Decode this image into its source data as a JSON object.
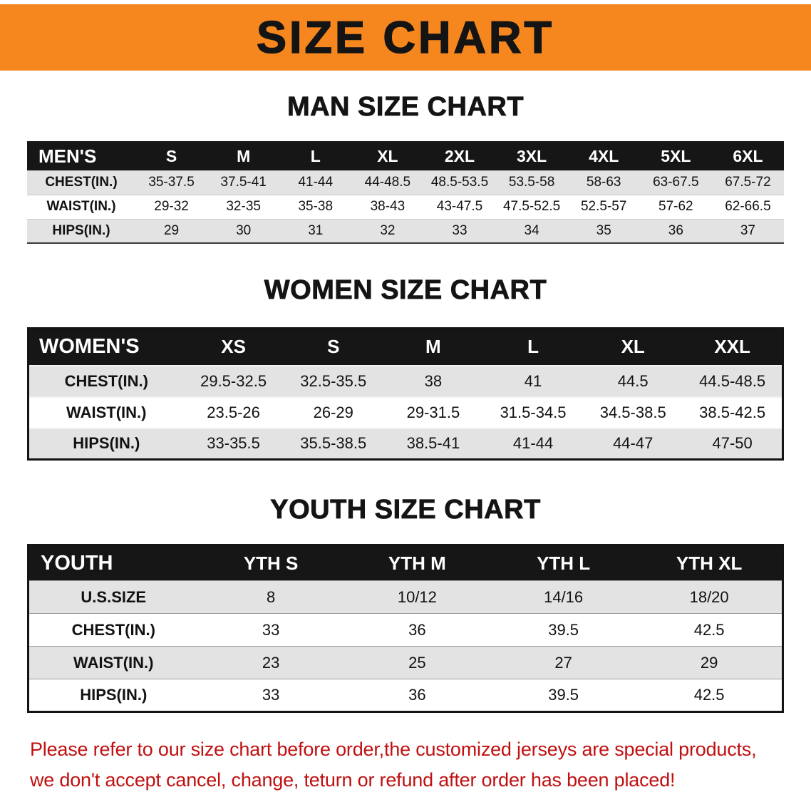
{
  "banner": {
    "title": "SIZE CHART"
  },
  "colors": {
    "banner_bg": "#F6871F",
    "table_header_bg": "#161616",
    "row_shade": "#E3E3E3",
    "note_red": "#C01010"
  },
  "chart_data": [
    {
      "type": "table",
      "title": "MAN SIZE CHART",
      "corner_label": "MEN'S",
      "columns": [
        "S",
        "M",
        "L",
        "XL",
        "2XL",
        "3XL",
        "4XL",
        "5XL",
        "6XL"
      ],
      "rows": [
        {
          "label": "CHEST(IN.)",
          "values": [
            "35-37.5",
            "37.5-41",
            "41-44",
            "44-48.5",
            "48.5-53.5",
            "53.5-58",
            "58-63",
            "63-67.5",
            "67.5-72"
          ]
        },
        {
          "label": "WAIST(IN.)",
          "values": [
            "29-32",
            "32-35",
            "35-38",
            "38-43",
            "43-47.5",
            "47.5-52.5",
            "52.5-57",
            "57-62",
            "62-66.5"
          ]
        },
        {
          "label": "HIPS(IN.)",
          "values": [
            "29",
            "30",
            "31",
            "32",
            "33",
            "34",
            "35",
            "36",
            "37"
          ]
        }
      ]
    },
    {
      "type": "table",
      "title": "WOMEN SIZE CHART",
      "corner_label": "WOMEN'S",
      "columns": [
        "XS",
        "S",
        "M",
        "L",
        "XL",
        "XXL"
      ],
      "rows": [
        {
          "label": "CHEST(IN.)",
          "values": [
            "29.5-32.5",
            "32.5-35.5",
            "38",
            "41",
            "44.5",
            "44.5-48.5"
          ]
        },
        {
          "label": "WAIST(IN.)",
          "values": [
            "23.5-26",
            "26-29",
            "29-31.5",
            "31.5-34.5",
            "34.5-38.5",
            "38.5-42.5"
          ]
        },
        {
          "label": "HIPS(IN.)",
          "values": [
            "33-35.5",
            "35.5-38.5",
            "38.5-41",
            "41-44",
            "44-47",
            "47-50"
          ]
        }
      ]
    },
    {
      "type": "table",
      "title": "YOUTH SIZE CHART",
      "corner_label": "YOUTH",
      "columns": [
        "YTH S",
        "YTH M",
        "YTH L",
        "YTH XL"
      ],
      "rows": [
        {
          "label": "U.S.SIZE",
          "values": [
            "8",
            "10/12",
            "14/16",
            "18/20"
          ]
        },
        {
          "label": "CHEST(IN.)",
          "values": [
            "33",
            "36",
            "39.5",
            "42.5"
          ]
        },
        {
          "label": "WAIST(IN.)",
          "values": [
            "23",
            "25",
            "27",
            "29"
          ]
        },
        {
          "label": "HIPS(IN.)",
          "values": [
            "33",
            "36",
            "39.5",
            "42.5"
          ]
        }
      ]
    }
  ],
  "note": {
    "line1": "Please refer to our size chart before order,the customized jerseys are special products,",
    "line2": "we don't accept cancel, change, teturn or refund after order has been placed!"
  }
}
